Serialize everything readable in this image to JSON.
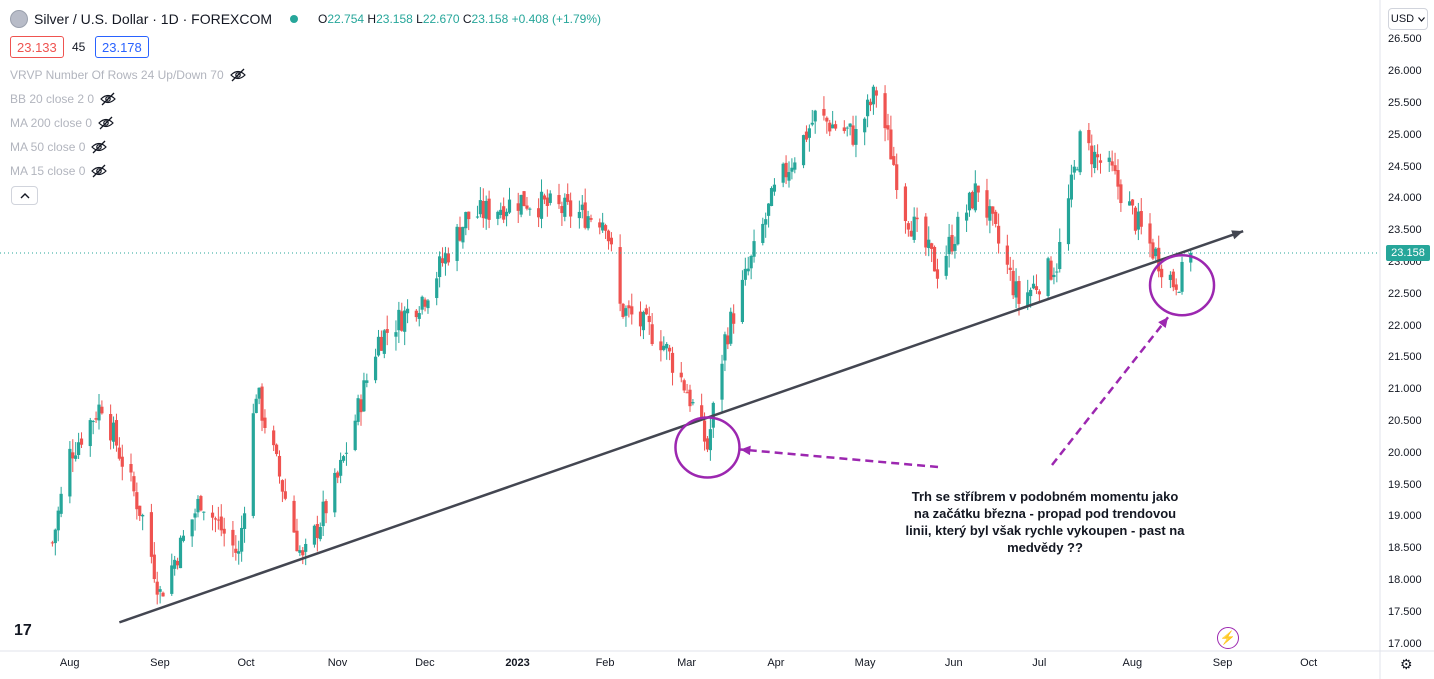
{
  "header": {
    "symbol_title": "Silver / U.S. Dollar · 1D · FOREXCOM",
    "ohlc": [
      {
        "key": "O",
        "value": "22.754"
      },
      {
        "key": "H",
        "value": "23.158"
      },
      {
        "key": "L",
        "value": "22.670"
      },
      {
        "key": "C",
        "value": "23.158"
      }
    ],
    "change": "+0.408 (+1.79%)",
    "bid": "23.133",
    "spread": "45",
    "ask": "23.178",
    "currency_button": "USD",
    "colors": {
      "up": "#26a69a",
      "down": "#ef5350",
      "bid": "#ef5350",
      "ask": "#2962ff",
      "annotation": "#9c27b0"
    }
  },
  "indicators": [
    {
      "label": "VRVP Number Of Rows 24 Up/Down 70",
      "icon": "eye-hidden-icon"
    },
    {
      "label": "BB 20 close 2 0",
      "icon": "eye-hidden-icon"
    },
    {
      "label": "MA 200 close 0",
      "icon": "eye-hidden-icon"
    },
    {
      "label": "MA 50 close 0",
      "icon": "eye-hidden-icon"
    },
    {
      "label": "MA 15 close 0",
      "icon": "eye-hidden-icon"
    }
  ],
  "annotation_text": "Trh se stříbrem v podobném momentu jako na začátku března - propad pod trendovou linii, který byl však rychle vykoupen - past na medvědy ??",
  "logo_text": "17",
  "chart_data": {
    "type": "candlestick",
    "title": "",
    "xlabel": "",
    "ylabel": "",
    "ylim": [
      16.9,
      26.6
    ],
    "y_ticks": [
      "26.500",
      "26.000",
      "25.500",
      "25.000",
      "24.500",
      "24.000",
      "23.500",
      "23.000",
      "22.500",
      "22.000",
      "21.500",
      "21.000",
      "20.500",
      "20.000",
      "19.500",
      "19.000",
      "18.500",
      "18.000",
      "17.500",
      "17.000"
    ],
    "x_ticks": [
      "Aug",
      "Sep",
      "Oct",
      "Nov",
      "Dec",
      "2023",
      "Feb",
      "Mar",
      "Apr",
      "May",
      "Jun",
      "Jul",
      "Aug",
      "Sep",
      "Oct"
    ],
    "last_price": "23.158",
    "close_series": [
      {
        "date": "2022-07-26",
        "close": 18.6
      },
      {
        "date": "2022-08-01",
        "close": 20.0
      },
      {
        "date": "2022-08-12",
        "close": 20.8
      },
      {
        "date": "2022-08-26",
        "close": 19.0
      },
      {
        "date": "2022-09-01",
        "close": 17.8
      },
      {
        "date": "2022-09-15",
        "close": 19.3
      },
      {
        "date": "2022-09-28",
        "close": 18.4
      },
      {
        "date": "2022-10-04",
        "close": 21.0
      },
      {
        "date": "2022-10-20",
        "close": 18.3
      },
      {
        "date": "2022-11-01",
        "close": 19.6
      },
      {
        "date": "2022-11-15",
        "close": 21.8
      },
      {
        "date": "2022-12-01",
        "close": 22.5
      },
      {
        "date": "2022-12-15",
        "close": 23.7
      },
      {
        "date": "2023-01-03",
        "close": 24.0
      },
      {
        "date": "2023-01-20",
        "close": 23.8
      },
      {
        "date": "2023-02-01",
        "close": 23.7
      },
      {
        "date": "2023-02-06",
        "close": 22.3
      },
      {
        "date": "2023-02-20",
        "close": 21.8
      },
      {
        "date": "2023-03-01",
        "close": 21.0
      },
      {
        "date": "2023-03-08",
        "close": 20.1
      },
      {
        "date": "2023-03-14",
        "close": 21.8
      },
      {
        "date": "2023-03-31",
        "close": 24.1
      },
      {
        "date": "2023-04-14",
        "close": 25.3
      },
      {
        "date": "2023-04-28",
        "close": 25.0
      },
      {
        "date": "2023-05-05",
        "close": 25.7
      },
      {
        "date": "2023-05-15",
        "close": 23.8
      },
      {
        "date": "2023-05-26",
        "close": 22.9
      },
      {
        "date": "2023-06-09",
        "close": 24.2
      },
      {
        "date": "2023-06-23",
        "close": 22.4
      },
      {
        "date": "2023-07-06",
        "close": 23.0
      },
      {
        "date": "2023-07-14",
        "close": 24.9
      },
      {
        "date": "2023-07-25",
        "close": 24.4
      },
      {
        "date": "2023-08-04",
        "close": 23.5
      },
      {
        "date": "2023-08-15",
        "close": 22.7
      },
      {
        "date": "2023-08-18",
        "close": 22.8
      },
      {
        "date": "2023-08-21",
        "close": 23.158
      }
    ],
    "trendline": {
      "start": {
        "date": "2022-08-18",
        "price": 17.35
      },
      "end": {
        "date": "2023-09-08",
        "price": 23.5
      }
    },
    "circles": [
      {
        "date": "2023-03-08",
        "price": 20.1
      },
      {
        "date": "2023-08-18",
        "price": 22.65
      }
    ]
  }
}
